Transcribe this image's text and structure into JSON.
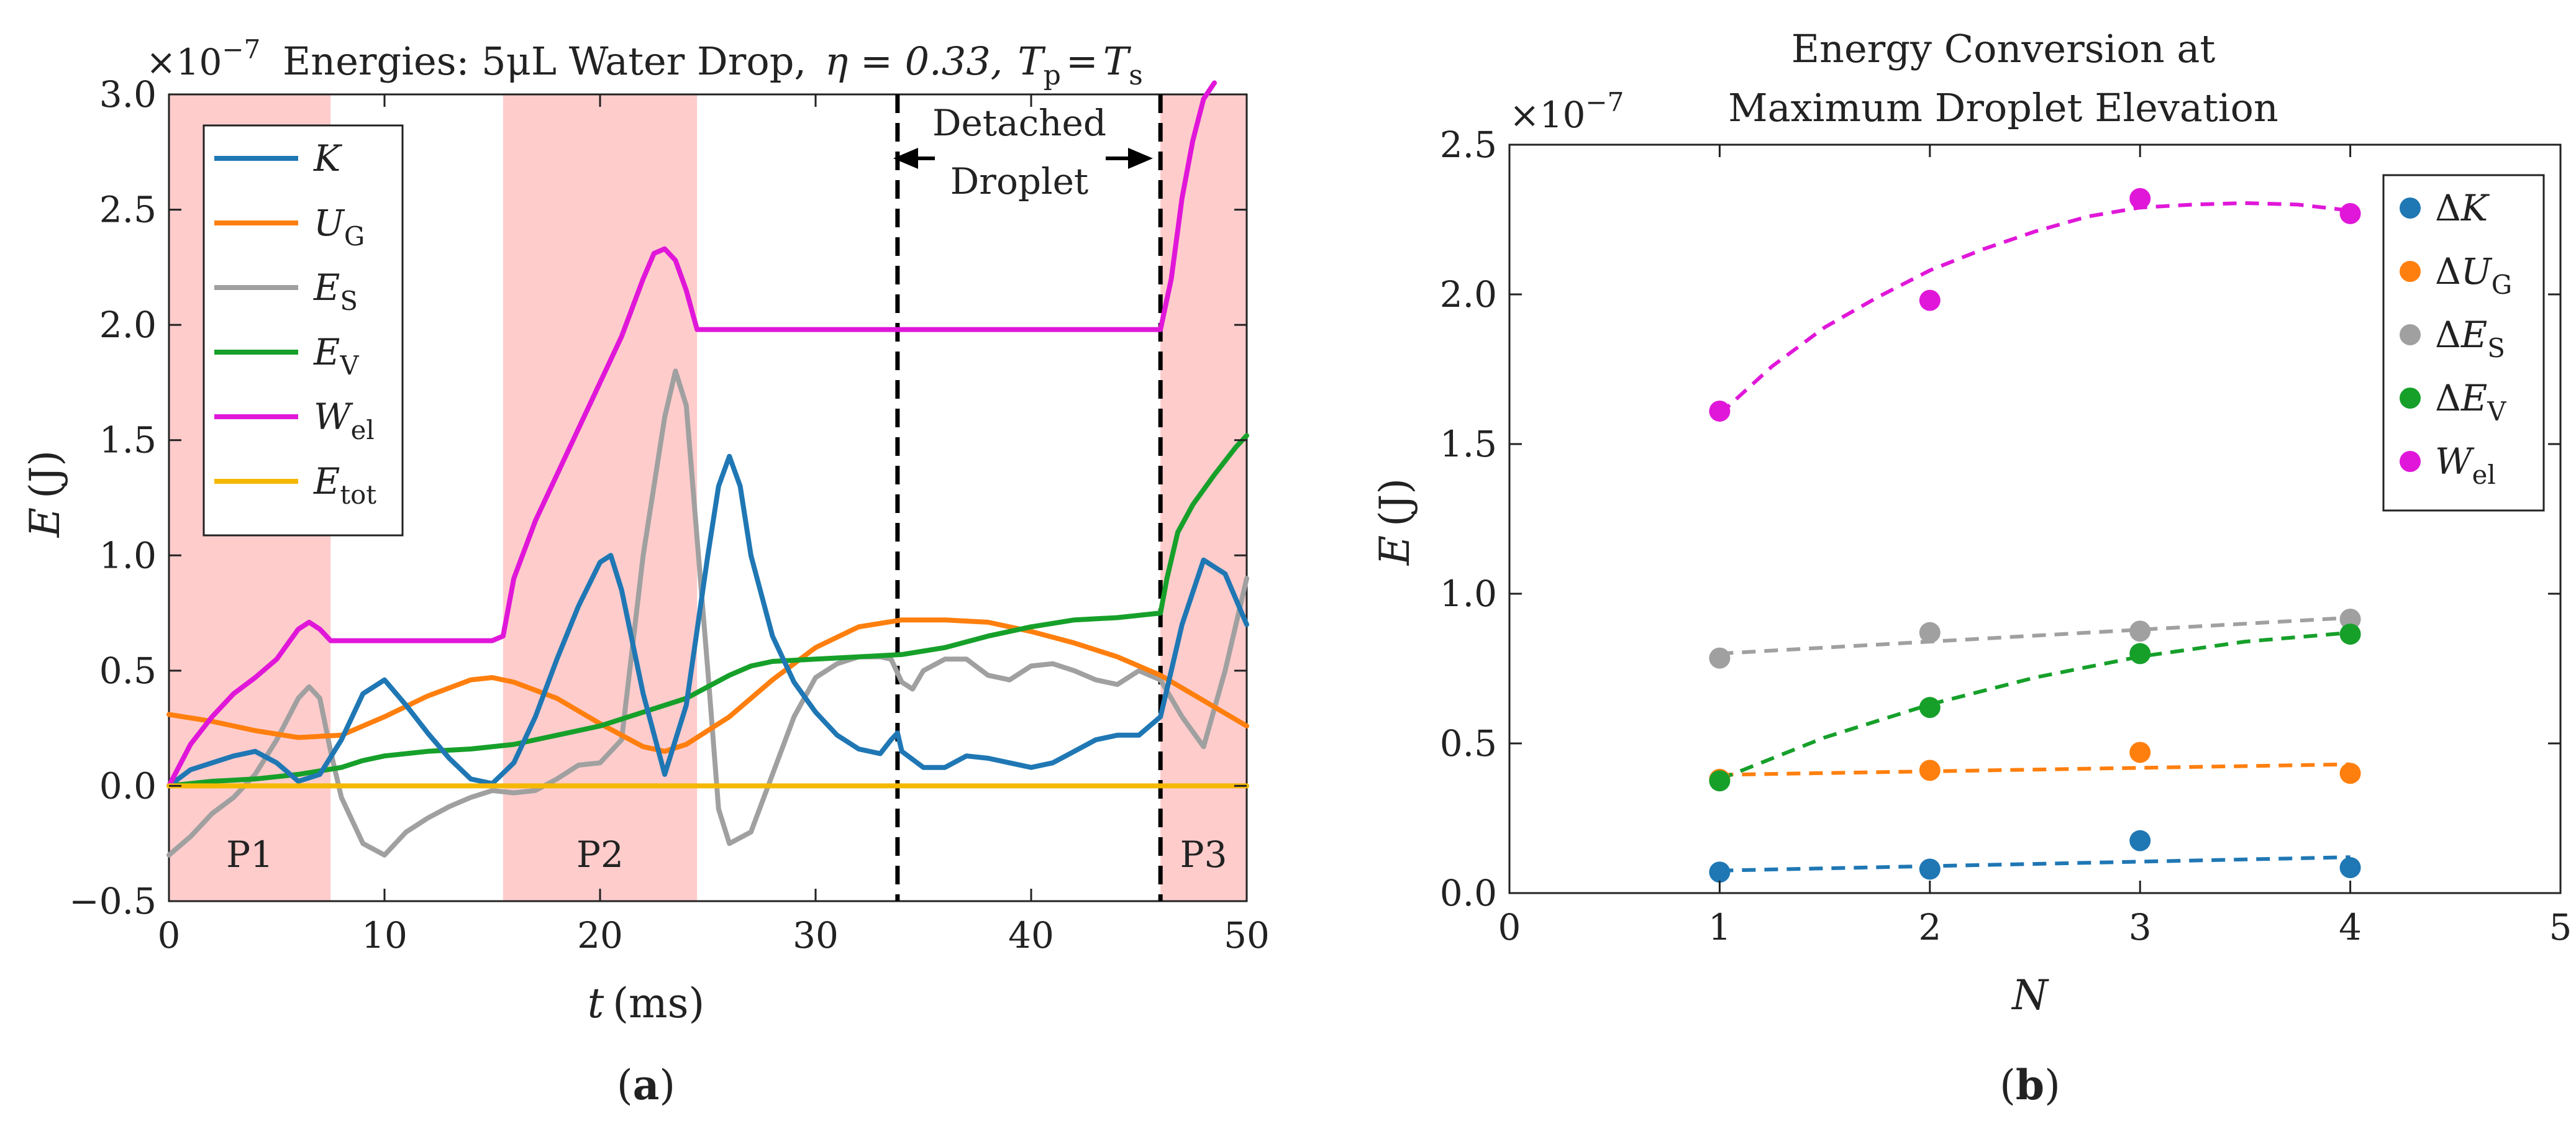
{
  "panels": {
    "a": {
      "label": "a",
      "title_prefix": "Energies: 5μL Water Drop,",
      "title_eta": "η = 0.33,",
      "title_T_main": "T",
      "title_T_sub1": "p",
      "title_eq": "=",
      "title_T_sub2": "s",
      "exponent_base": "×10",
      "exponent_power": "−7",
      "xlabel_var": "t",
      "xlabel_unit": "(ms)",
      "ylabel_var": "E",
      "ylabel_unit": "(J)",
      "phase_labels": [
        "P1",
        "P2",
        "P3"
      ],
      "detached_label": [
        "Detached",
        "Droplet"
      ]
    },
    "b": {
      "label": "b",
      "title_lines": [
        "Energy Conversion at",
        "Maximum Droplet Elevation"
      ],
      "exponent_base": "×10",
      "exponent_power": "−7",
      "xlabel": "N",
      "ylabel_var": "E",
      "ylabel_unit": "(J)"
    }
  },
  "chart_data": [
    {
      "type": "line",
      "title": "Energies: 5μL Water Drop, η = 0.33, Tp = Ts",
      "xlabel": "t (ms)",
      "ylabel": "E (J)",
      "y_scale": "×10^-7",
      "xlim": [
        0,
        50
      ],
      "ylim": [
        -0.5,
        3.0
      ],
      "xticks": [
        0,
        10,
        20,
        30,
        40,
        50
      ],
      "yticks": [
        -0.5,
        0.0,
        0.5,
        1.0,
        1.5,
        2.0,
        2.5,
        3.0
      ],
      "xtick_labels": [
        "0",
        "10",
        "20",
        "30",
        "40",
        "50"
      ],
      "ytick_labels": [
        "−0.5",
        "0.0",
        "0.5",
        "1.0",
        "1.5",
        "2.0",
        "2.5",
        "3.0"
      ],
      "shaded_regions": [
        {
          "label": "P1",
          "x0": 0,
          "x1": 7.5
        },
        {
          "label": "P2",
          "x0": 15.5,
          "x1": 24.5
        },
        {
          "label": "P3",
          "x0": 46,
          "x1": 50
        }
      ],
      "vlines": [
        33.8,
        46
      ],
      "legend_position": "top-left",
      "series": [
        {
          "name": "K",
          "sym": "K",
          "sub": "",
          "color": "#1f77b4",
          "x": [
            0,
            1,
            2,
            3,
            4,
            5,
            6,
            7,
            8,
            9,
            10,
            11,
            12,
            13,
            14,
            15,
            16,
            17,
            18,
            19,
            20,
            20.5,
            21,
            22,
            23,
            24,
            25,
            25.5,
            26,
            26.5,
            27,
            28,
            29,
            30,
            31,
            32,
            33,
            33.5,
            33.8,
            34,
            35,
            36,
            37,
            38,
            39,
            40,
            41,
            42,
            43,
            44,
            45,
            46,
            46.5,
            47,
            48,
            49,
            50
          ],
          "y": [
            0,
            0.07,
            0.1,
            0.13,
            0.15,
            0.1,
            0.02,
            0.05,
            0.2,
            0.4,
            0.46,
            0.35,
            0.23,
            0.12,
            0.03,
            0.01,
            0.1,
            0.3,
            0.55,
            0.78,
            0.97,
            1.0,
            0.85,
            0.4,
            0.05,
            0.35,
            1.0,
            1.3,
            1.43,
            1.3,
            1.0,
            0.65,
            0.45,
            0.32,
            0.22,
            0.16,
            0.14,
            0.2,
            0.23,
            0.15,
            0.08,
            0.08,
            0.13,
            0.12,
            0.1,
            0.08,
            0.1,
            0.15,
            0.2,
            0.22,
            0.22,
            0.3,
            0.5,
            0.7,
            0.98,
            0.92,
            0.7
          ]
        },
        {
          "name": "U_G",
          "sym": "U",
          "sub": "G",
          "color": "#ff7f0e",
          "x": [
            0,
            2,
            4,
            6,
            8,
            10,
            12,
            14,
            15,
            16,
            18,
            20,
            22,
            23,
            24,
            26,
            28,
            30,
            32,
            34,
            36,
            38,
            40,
            42,
            44,
            46,
            48,
            50
          ],
          "y": [
            0.31,
            0.28,
            0.24,
            0.21,
            0.22,
            0.3,
            0.39,
            0.46,
            0.47,
            0.45,
            0.38,
            0.27,
            0.17,
            0.15,
            0.18,
            0.3,
            0.46,
            0.6,
            0.69,
            0.72,
            0.72,
            0.71,
            0.67,
            0.62,
            0.56,
            0.48,
            0.37,
            0.26
          ]
        },
        {
          "name": "E_S",
          "sym": "E",
          "sub": "S",
          "color": "#a0a0a0",
          "x": [
            0,
            1,
            2,
            3,
            4,
            5,
            6,
            6.5,
            7,
            7.5,
            8,
            9,
            10,
            11,
            12,
            13,
            14,
            15,
            16,
            17,
            18,
            19,
            20,
            21,
            22,
            23,
            23.5,
            24,
            25,
            25.5,
            26,
            27,
            28,
            29,
            30,
            31,
            32,
            33,
            33.5,
            34,
            34.5,
            35,
            36,
            37,
            38,
            39,
            40,
            41,
            42,
            43,
            44,
            45,
            46,
            47,
            48,
            49,
            50
          ],
          "y": [
            -0.3,
            -0.22,
            -0.12,
            -0.05,
            0.05,
            0.2,
            0.38,
            0.43,
            0.38,
            0.15,
            -0.05,
            -0.25,
            -0.3,
            -0.2,
            -0.14,
            -0.09,
            -0.05,
            -0.02,
            -0.03,
            -0.02,
            0.03,
            0.09,
            0.1,
            0.2,
            1.0,
            1.6,
            1.8,
            1.65,
            0.5,
            -0.1,
            -0.25,
            -0.2,
            0.05,
            0.3,
            0.47,
            0.53,
            0.56,
            0.56,
            0.55,
            0.45,
            0.42,
            0.5,
            0.55,
            0.55,
            0.48,
            0.46,
            0.52,
            0.53,
            0.5,
            0.46,
            0.44,
            0.5,
            0.46,
            0.3,
            0.17,
            0.5,
            0.9
          ]
        },
        {
          "name": "E_V",
          "sym": "E",
          "sub": "V",
          "color": "#16a02a",
          "x": [
            0,
            2,
            4,
            6,
            8,
            9,
            10,
            12,
            14,
            16,
            18,
            20,
            22,
            24,
            25,
            26,
            27,
            28,
            30,
            32,
            34,
            36,
            38,
            40,
            42,
            44,
            46,
            46.3,
            46.8,
            47.5,
            48.5,
            49.5,
            50
          ],
          "y": [
            0,
            0.02,
            0.03,
            0.05,
            0.08,
            0.11,
            0.13,
            0.15,
            0.16,
            0.18,
            0.22,
            0.26,
            0.32,
            0.38,
            0.43,
            0.48,
            0.52,
            0.54,
            0.55,
            0.56,
            0.57,
            0.6,
            0.65,
            0.69,
            0.72,
            0.73,
            0.75,
            0.9,
            1.1,
            1.22,
            1.35,
            1.47,
            1.52
          ]
        },
        {
          "name": "W_el",
          "sym": "W",
          "sub": "el",
          "color": "#e017d9",
          "x": [
            0,
            1,
            2,
            3,
            4,
            5,
            6,
            6.5,
            7,
            7.5,
            8,
            10,
            12,
            14,
            15,
            15.5,
            16,
            17,
            18,
            19,
            20,
            21,
            22,
            22.5,
            23,
            23.5,
            24,
            24.5,
            26,
            28,
            30,
            32,
            34,
            36,
            38,
            40,
            42,
            44,
            46,
            46.5,
            47,
            47.5,
            48,
            48.5
          ],
          "y": [
            0,
            0.18,
            0.3,
            0.4,
            0.47,
            0.55,
            0.68,
            0.71,
            0.68,
            0.63,
            0.63,
            0.63,
            0.63,
            0.63,
            0.63,
            0.65,
            0.9,
            1.15,
            1.35,
            1.55,
            1.75,
            1.95,
            2.2,
            2.31,
            2.33,
            2.28,
            2.15,
            1.98,
            1.98,
            1.98,
            1.98,
            1.98,
            1.98,
            1.98,
            1.98,
            1.98,
            1.98,
            1.98,
            1.98,
            2.2,
            2.55,
            2.8,
            2.98,
            3.05
          ]
        },
        {
          "name": "E_tot",
          "sym": "E",
          "sub": "tot",
          "color": "#f5b800",
          "x": [
            0,
            50
          ],
          "y": [
            0,
            0
          ]
        }
      ]
    },
    {
      "type": "scatter",
      "title": "Energy Conversion at Maximum Droplet Elevation",
      "xlabel": "N",
      "ylabel": "E (J)",
      "y_scale": "×10^-7",
      "xlim": [
        0,
        5
      ],
      "ylim": [
        0,
        2.5
      ],
      "xticks": [
        0,
        1,
        2,
        3,
        4,
        5
      ],
      "yticks": [
        0.0,
        0.5,
        1.0,
        1.5,
        2.0,
        2.5
      ],
      "xtick_labels": [
        "0",
        "1",
        "2",
        "3",
        "4",
        "5"
      ],
      "ytick_labels": [
        "0.0",
        "0.5",
        "1.0",
        "1.5",
        "2.0",
        "2.5"
      ],
      "legend_position": "top-right",
      "series": [
        {
          "name": "ΔK",
          "pre": "Δ",
          "sym": "K",
          "sub": "",
          "color": "#1f77b4",
          "x": [
            1,
            2,
            3,
            4
          ],
          "y": [
            0.07,
            0.08,
            0.175,
            0.085
          ],
          "fit": {
            "x": [
              1,
              4
            ],
            "y": [
              0.075,
              0.12
            ],
            "quadratic": false
          }
        },
        {
          "name": "ΔU_G",
          "pre": "Δ",
          "sym": "U",
          "sub": "G",
          "color": "#ff7f0e",
          "x": [
            1,
            2,
            3,
            4
          ],
          "y": [
            0.38,
            0.41,
            0.47,
            0.4
          ],
          "fit": {
            "x": [
              1,
              4
            ],
            "y": [
              0.395,
              0.43
            ],
            "quadratic": false
          }
        },
        {
          "name": "ΔE_S",
          "pre": "Δ",
          "sym": "E",
          "sub": "S",
          "color": "#a0a0a0",
          "x": [
            1,
            2,
            3,
            4
          ],
          "y": [
            0.785,
            0.87,
            0.875,
            0.915
          ],
          "fit": {
            "x": [
              1,
              4
            ],
            "y": [
              0.8,
              0.92
            ],
            "quadratic": false
          }
        },
        {
          "name": "ΔE_V",
          "pre": "Δ",
          "sym": "E",
          "sub": "V",
          "color": "#16a02a",
          "x": [
            1,
            2,
            3,
            4
          ],
          "y": [
            0.375,
            0.62,
            0.8,
            0.865
          ],
          "fit": {
            "x": [
              1,
              1.5,
              2,
              2.5,
              3,
              3.5,
              4
            ],
            "y": [
              0.38,
              0.52,
              0.63,
              0.72,
              0.79,
              0.84,
              0.87
            ],
            "quadratic": true
          }
        },
        {
          "name": "W_el",
          "pre": "",
          "sym": "W",
          "sub": "el",
          "color": "#e017d9",
          "x": [
            1,
            2,
            3,
            4
          ],
          "y": [
            1.61,
            1.98,
            2.32,
            2.27
          ],
          "fit": {
            "x": [
              1,
              1.25,
              1.5,
              1.75,
              2,
              2.25,
              2.5,
              2.75,
              3,
              3.25,
              3.5,
              3.75,
              4
            ],
            "y": [
              1.6,
              1.76,
              1.89,
              1.99,
              2.08,
              2.15,
              2.21,
              2.26,
              2.29,
              2.3,
              2.305,
              2.3,
              2.28
            ],
            "quadratic": true
          }
        }
      ]
    }
  ]
}
